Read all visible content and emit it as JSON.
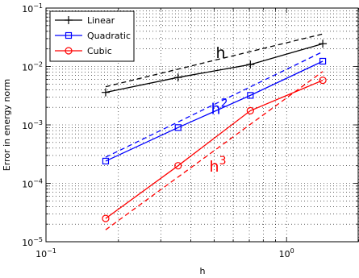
{
  "chart_data": {
    "type": "line",
    "xlabel": "h",
    "ylabel": "Error in energy norm",
    "xscale": "log",
    "yscale": "log",
    "xlim": [
      0.1,
      2.0
    ],
    "ylim": [
      1e-05,
      0.1
    ],
    "x_ticks": [
      {
        "value": 0.1,
        "base": "10",
        "exp": "−1"
      },
      {
        "value": 1,
        "base": "10",
        "exp": "0"
      }
    ],
    "y_ticks": [
      {
        "value": 1e-05,
        "base": "10",
        "exp": "−5"
      },
      {
        "value": 0.0001,
        "base": "10",
        "exp": "−4"
      },
      {
        "value": 0.001,
        "base": "10",
        "exp": "−3"
      },
      {
        "value": 0.01,
        "base": "10",
        "exp": "−2"
      },
      {
        "value": 0.1,
        "base": "10",
        "exp": "−1"
      }
    ],
    "grid": true,
    "legend_position": "top-left",
    "series": [
      {
        "name": "Linear",
        "color": "#000000",
        "marker": "plus",
        "x": [
          0.177,
          0.354,
          0.707,
          1.414
        ],
        "y": [
          0.0036,
          0.0065,
          0.0108,
          0.0245
        ]
      },
      {
        "name": "Quadratic",
        "color": "#0000ff",
        "marker": "square",
        "x": [
          0.177,
          0.354,
          0.707,
          1.414
        ],
        "y": [
          0.00024,
          0.0009,
          0.0032,
          0.0123
        ]
      },
      {
        "name": "Cubic",
        "color": "#ff0000",
        "marker": "circle",
        "x": [
          0.177,
          0.354,
          0.707,
          1.414
        ],
        "y": [
          2.5e-05,
          0.0002,
          0.00175,
          0.0058
        ]
      }
    ],
    "reference_lines": [
      {
        "label": "h",
        "exp": "",
        "color": "#000000",
        "x": [
          0.177,
          1.414
        ],
        "y": [
          0.0045,
          0.036
        ]
      },
      {
        "label": "h",
        "exp": "2",
        "color": "#0000ff",
        "x": [
          0.177,
          1.414
        ],
        "y": [
          0.00028,
          0.0179
        ]
      },
      {
        "label": "h",
        "exp": "3",
        "color": "#ff0000",
        "x": [
          0.177,
          1.414
        ],
        "y": [
          1.6e-05,
          0.0082
        ]
      }
    ]
  }
}
